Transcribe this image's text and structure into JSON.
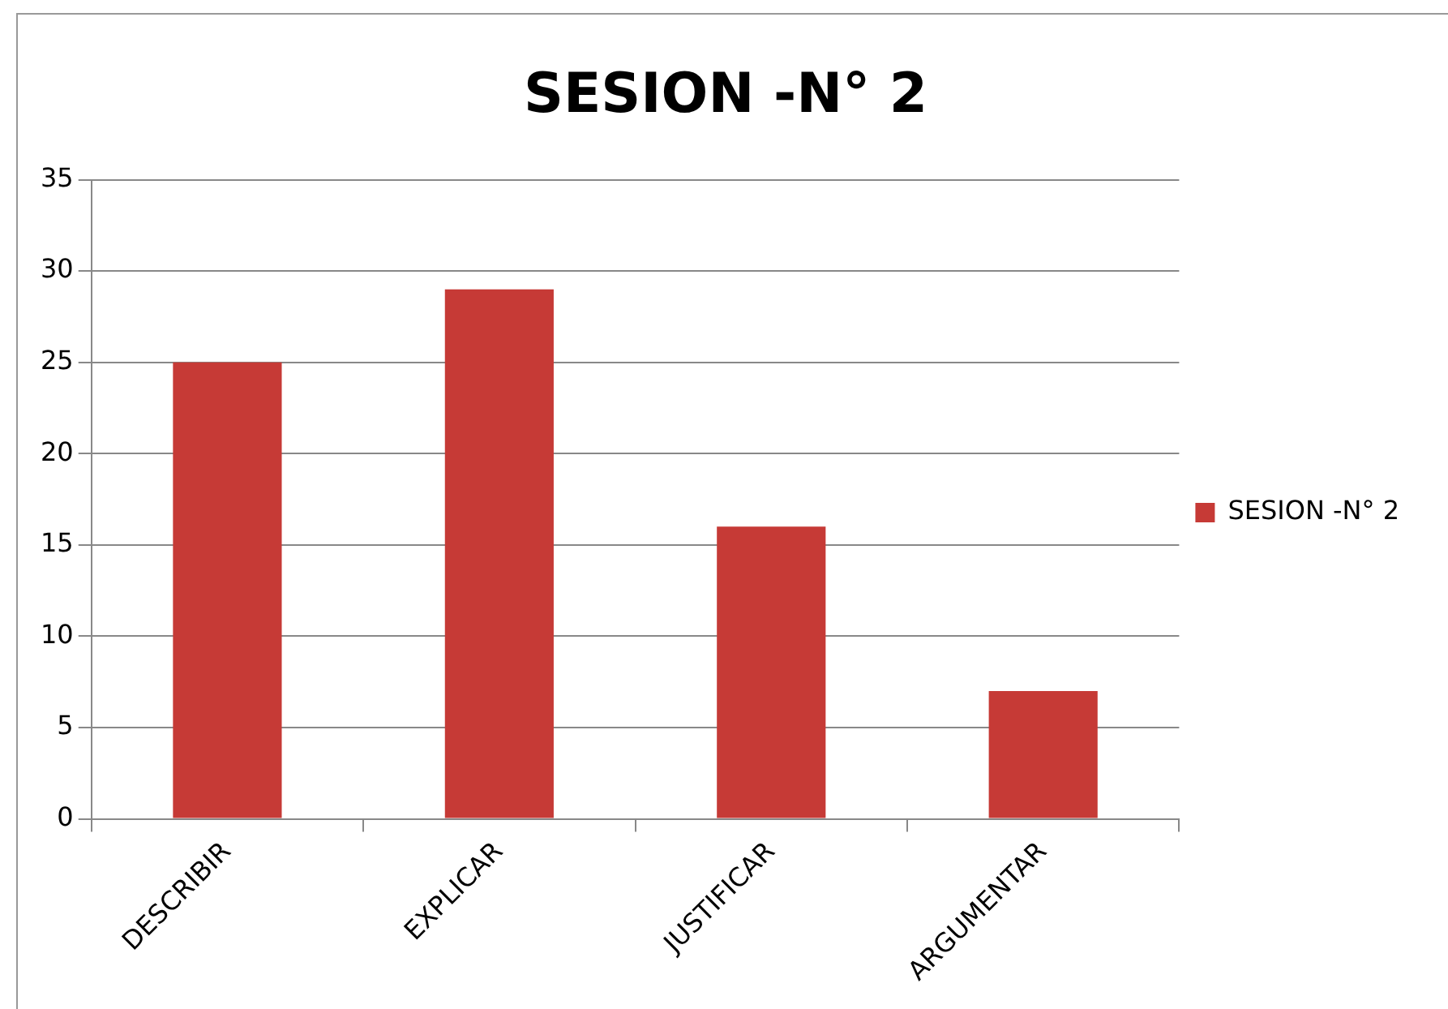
{
  "chart_data": {
    "type": "bar",
    "title": "SESION -N° 2",
    "categories": [
      "DESCRIBIR",
      "EXPLICAR",
      "JUSTIFICAR",
      "ARGUMENTAR"
    ],
    "series": [
      {
        "name": "SESION -N° 2",
        "color": "#c63a36",
        "values": [
          25,
          29,
          16,
          7
        ]
      }
    ],
    "ylim": [
      0,
      35
    ],
    "yticks": [
      0,
      5,
      10,
      15,
      20,
      25,
      30,
      35
    ],
    "grid": "y",
    "legend": "right"
  }
}
